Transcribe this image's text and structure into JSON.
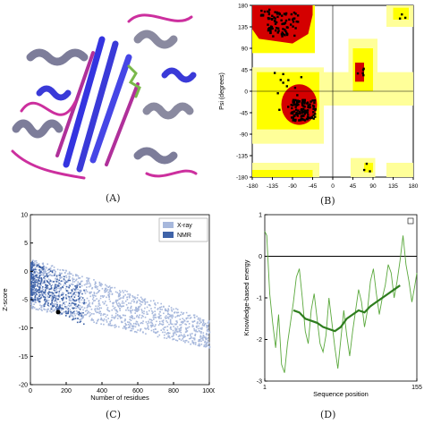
{
  "panels": {
    "a": {
      "caption": "(A)"
    },
    "b": {
      "caption": "(B)"
    },
    "c": {
      "caption": "(C)"
    },
    "d": {
      "caption": "(D)"
    }
  },
  "chart_data": [
    {
      "panel": "B",
      "type": "scatter",
      "title": "",
      "xlabel": "",
      "ylabel": "Psi (degrees)",
      "xlim": [
        -180,
        180
      ],
      "ylim": [
        -180,
        180
      ],
      "x_ticks": [
        "-180",
        "-135",
        "-90",
        "-45",
        "0",
        "45",
        "90",
        "135",
        "180"
      ],
      "y_ticks": [
        "180",
        "135",
        "90",
        "45",
        "0",
        "-45",
        "-90",
        "-135",
        "-180"
      ],
      "region_colors": {
        "core": "#d40000",
        "allowed": "#ffff00",
        "generous": "#ffff99",
        "disallowed": "#ffffff"
      },
      "points_note": "residue phi/psi points"
    },
    {
      "panel": "C",
      "type": "scatter",
      "title": "",
      "xlabel": "Number of residues",
      "ylabel": "Z-score",
      "xlim": [
        0,
        1000
      ],
      "ylim": [
        -20,
        10
      ],
      "x_ticks": [
        "0",
        "200",
        "400",
        "600",
        "800",
        "1000"
      ],
      "y_ticks": [
        "10",
        "5",
        "0",
        "-5",
        "-10",
        "-15",
        "-20"
      ],
      "legend": {
        "placement": "top-right",
        "entries": [
          "X-ray",
          "NMR"
        ]
      },
      "series_colors": {
        "X-ray": "#a7b8dc",
        "NMR": "#3f63a8"
      },
      "highlight_point": {
        "x": 155,
        "y": -7.2
      }
    },
    {
      "panel": "D",
      "type": "line",
      "title": "",
      "xlabel": "Sequence position",
      "ylabel": "Knowledge-based energy",
      "xlim": [
        1,
        155
      ],
      "ylim": [
        -3,
        1
      ],
      "x_ticks": [
        "1",
        "155"
      ],
      "y_ticks": [
        "1",
        "0",
        "-1",
        "-2",
        "-3"
      ],
      "series": [
        {
          "style": "thin",
          "color": "#5aa83c",
          "x": [
            1,
            3,
            6,
            9,
            12,
            15,
            18,
            21,
            24,
            27,
            30,
            33,
            36,
            39,
            42,
            45,
            48,
            51,
            54,
            57,
            60,
            63,
            66,
            69,
            72,
            75,
            78,
            81,
            84,
            87,
            90,
            93,
            96,
            99,
            102,
            105,
            108,
            111,
            114,
            117,
            120,
            123,
            126,
            129,
            132,
            135,
            138,
            141,
            144,
            147,
            150,
            153,
            155
          ],
          "y": [
            0.6,
            0.5,
            -0.9,
            -1.6,
            -2.2,
            -1.4,
            -2.6,
            -2.8,
            -2.1,
            -1.6,
            -1.1,
            -0.5,
            -0.3,
            -1.0,
            -1.8,
            -2.1,
            -1.3,
            -0.9,
            -1.5,
            -2.1,
            -2.3,
            -1.9,
            -1.0,
            -1.6,
            -2.2,
            -2.7,
            -2.0,
            -1.3,
            -1.9,
            -2.4,
            -1.8,
            -1.3,
            -0.8,
            -1.1,
            -1.7,
            -1.3,
            -0.6,
            -0.3,
            -0.9,
            -1.4,
            -1.0,
            -0.7,
            -0.2,
            -0.4,
            -1.0,
            -0.6,
            -0.1,
            0.5,
            -0.2,
            -0.6,
            -1.1,
            -0.7,
            -0.4
          ]
        },
        {
          "style": "thick",
          "color": "#2e7d1e",
          "x": [
            30,
            36,
            42,
            48,
            54,
            60,
            66,
            72,
            78,
            84,
            90,
            96,
            102,
            108,
            114,
            120,
            126,
            132,
            138
          ],
          "y": [
            -1.3,
            -1.35,
            -1.5,
            -1.55,
            -1.6,
            -1.7,
            -1.75,
            -1.8,
            -1.7,
            -1.5,
            -1.4,
            -1.3,
            -1.35,
            -1.2,
            -1.1,
            -1.0,
            -0.9,
            -0.8,
            -0.7
          ]
        }
      ],
      "reference_line_y": 0
    }
  ]
}
